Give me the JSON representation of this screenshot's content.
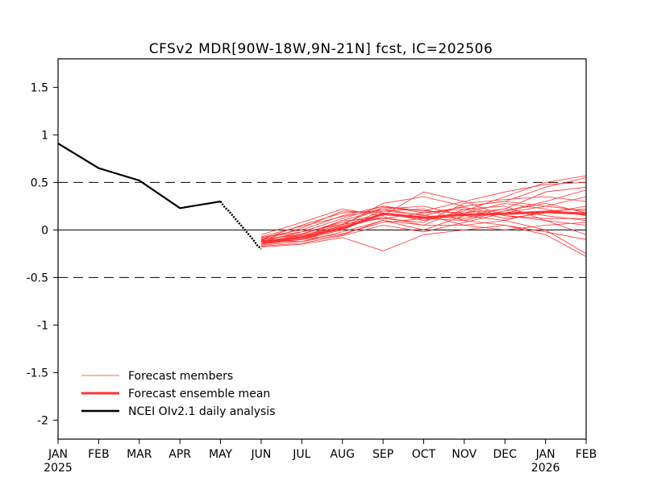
{
  "chart_data": {
    "type": "line",
    "title": "CFSv2 MDR[90W-18W,9N-21N] fcst, IC=202506",
    "x_ticks": [
      "JAN",
      "FEB",
      "MAR",
      "APR",
      "MAY",
      "JUN",
      "JUL",
      "AUG",
      "SEP",
      "OCT",
      "NOV",
      "DEC",
      "JAN",
      "FEB"
    ],
    "x_year_labels": [
      {
        "tick_index": 0,
        "label": "2025"
      },
      {
        "tick_index": 12,
        "label": "2026"
      }
    ],
    "xlim": [
      0,
      13
    ],
    "ylim": [
      -2.2,
      1.8
    ],
    "y_ticks": [
      1.5,
      1,
      0.5,
      0,
      -0.5,
      -1,
      -1.5,
      -2
    ],
    "y_tick_labels": [
      "1.5",
      "1",
      "0.5",
      "0",
      "-0.5",
      "-1",
      "-1.5",
      "-2"
    ],
    "reference_lines": {
      "solid": [
        0
      ],
      "dashed": [
        0.5,
        -0.5
      ]
    },
    "colors": {
      "observed": "#000000",
      "members": "#ff3333",
      "mean": "#ff3333",
      "axes": "#000000"
    },
    "legend": {
      "placement": "bottom-left",
      "entries": [
        {
          "key": "members",
          "label": "Forecast members"
        },
        {
          "key": "mean",
          "label": "Forecast ensemble mean"
        },
        {
          "key": "observed",
          "label": "NCEI OIv2.1 daily analysis"
        }
      ]
    },
    "observed": {
      "name": "NCEI OIv2.1 daily analysis",
      "x": [
        0,
        1,
        2,
        3,
        4
      ],
      "y": [
        0.91,
        0.65,
        0.52,
        0.23,
        0.3
      ]
    },
    "observed_daily": {
      "x": [
        4.0,
        4.1,
        4.2,
        4.3,
        4.4,
        4.5,
        4.6,
        4.7,
        4.8,
        4.9,
        5.0
      ],
      "y": [
        0.3,
        0.24,
        0.2,
        0.15,
        0.1,
        0.05,
        0.0,
        -0.05,
        -0.1,
        -0.16,
        -0.2
      ]
    },
    "forecast_x": [
      5,
      6,
      7,
      8,
      9,
      10,
      11,
      12,
      13
    ],
    "ensemble_mean": {
      "name": "Forecast ensemble mean",
      "y": [
        -0.12,
        -0.08,
        0.02,
        0.17,
        0.13,
        0.16,
        0.17,
        0.19,
        0.17
      ]
    },
    "members": [
      {
        "y": [
          -0.1,
          -0.05,
          0.1,
          0.22,
          0.15,
          0.25,
          0.3,
          0.45,
          0.55
        ]
      },
      {
        "y": [
          -0.15,
          -0.1,
          0.0,
          0.18,
          0.1,
          0.2,
          0.35,
          0.5,
          0.57
        ]
      },
      {
        "y": [
          -0.08,
          0.0,
          0.15,
          0.25,
          0.2,
          0.3,
          0.4,
          0.48,
          0.5
        ]
      },
      {
        "y": [
          -0.12,
          -0.12,
          -0.05,
          0.1,
          0.05,
          0.05,
          0.1,
          0.0,
          -0.25
        ]
      },
      {
        "y": [
          -0.18,
          -0.15,
          -0.08,
          -0.22,
          -0.05,
          0.0,
          0.05,
          -0.05,
          -0.28
        ]
      },
      {
        "y": [
          -0.1,
          0.05,
          0.18,
          0.2,
          0.22,
          0.1,
          0.2,
          0.3,
          0.42
        ]
      },
      {
        "y": [
          -0.14,
          -0.08,
          0.05,
          0.28,
          0.35,
          0.25,
          0.3,
          0.25,
          0.2
        ]
      },
      {
        "y": [
          -0.05,
          0.08,
          0.22,
          0.15,
          0.4,
          0.3,
          0.15,
          0.1,
          0.05
        ]
      },
      {
        "y": [
          -0.16,
          -0.12,
          -0.02,
          0.1,
          0.0,
          0.15,
          0.22,
          0.15,
          0.1
        ]
      },
      {
        "y": [
          -0.12,
          -0.02,
          0.12,
          0.25,
          0.18,
          0.22,
          0.12,
          0.18,
          0.25
        ]
      },
      {
        "y": [
          -0.09,
          -0.06,
          0.06,
          0.12,
          0.08,
          0.28,
          0.32,
          0.35,
          0.3
        ]
      },
      {
        "y": [
          -0.13,
          -0.1,
          -0.04,
          0.08,
          0.12,
          0.1,
          0.05,
          -0.02,
          -0.1
        ]
      },
      {
        "y": [
          -0.11,
          0.02,
          0.2,
          0.18,
          0.1,
          0.18,
          0.28,
          0.22,
          0.15
        ]
      },
      {
        "y": [
          -0.17,
          -0.14,
          -0.06,
          0.05,
          -0.02,
          0.08,
          0.18,
          0.25,
          0.35
        ]
      },
      {
        "y": [
          -0.07,
          0.04,
          0.14,
          0.22,
          0.25,
          0.15,
          0.1,
          0.2,
          0.22
        ]
      },
      {
        "y": [
          -0.14,
          -0.1,
          0.02,
          0.14,
          0.05,
          0.22,
          0.25,
          0.1,
          -0.05
        ]
      },
      {
        "y": [
          -0.1,
          -0.04,
          0.08,
          0.16,
          0.14,
          0.12,
          0.2,
          0.28,
          0.18
        ]
      },
      {
        "y": [
          -0.12,
          -0.06,
          0.04,
          0.2,
          0.16,
          0.05,
          0.0,
          0.05,
          0.08
        ]
      },
      {
        "y": [
          -0.15,
          -0.08,
          0.1,
          0.12,
          0.18,
          0.24,
          0.15,
          0.12,
          0.12
        ]
      },
      {
        "y": [
          -0.08,
          -0.02,
          0.06,
          0.24,
          0.2,
          0.18,
          0.22,
          0.4,
          0.45
        ]
      }
    ]
  }
}
